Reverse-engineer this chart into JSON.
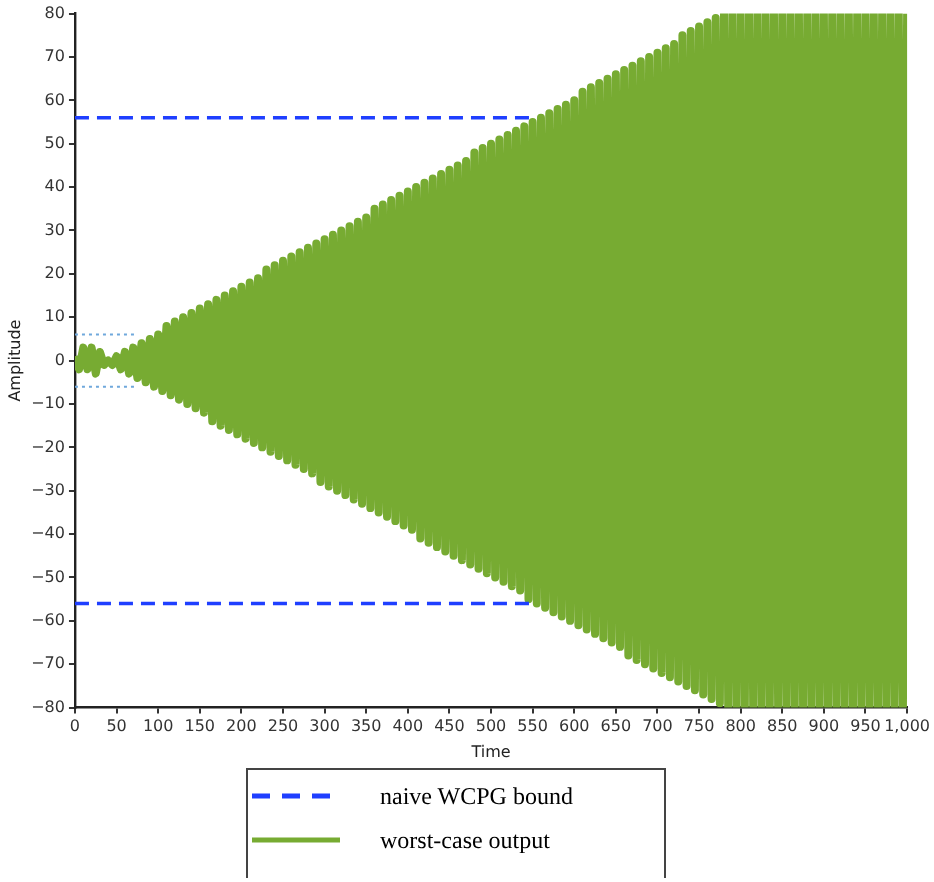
{
  "chart_data": {
    "type": "line",
    "xlabel": "Time",
    "ylabel": "Amplitude",
    "legend": "bottom",
    "marker": "none",
    "xlim": [
      0,
      1000
    ],
    "ylim": [
      -80,
      80
    ],
    "xticks": [
      0,
      50,
      100,
      150,
      200,
      250,
      300,
      350,
      400,
      450,
      500,
      550,
      600,
      650,
      700,
      750,
      800,
      850,
      900,
      950,
      {
        "value": 1000,
        "label": "1,000"
      }
    ],
    "yticks": [
      {
        "value": -80,
        "label": "−80"
      },
      {
        "value": -70,
        "label": "−70"
      },
      {
        "value": -60,
        "label": "−60"
      },
      {
        "value": -50,
        "label": "−50"
      },
      {
        "value": -40,
        "label": "−40"
      },
      {
        "value": -30,
        "label": "−30"
      },
      {
        "value": -20,
        "label": "−20"
      },
      {
        "value": -10,
        "label": "−10"
      },
      0,
      10,
      20,
      30,
      40,
      50,
      60,
      70,
      80
    ],
    "x": [
      0,
      5,
      10,
      15,
      20,
      25,
      30,
      35,
      40,
      45,
      50,
      55,
      60,
      65,
      70,
      75,
      80,
      85,
      90,
      95,
      100,
      105,
      110,
      115,
      120,
      125,
      130,
      135,
      140,
      145,
      150,
      155,
      160,
      165,
      170,
      175,
      180,
      185,
      190,
      195,
      200,
      205,
      210,
      215,
      220,
      225,
      230,
      235,
      240,
      245,
      250,
      255,
      260,
      265,
      270,
      275,
      280,
      285,
      290,
      295,
      300,
      305,
      310,
      315,
      320,
      325,
      330,
      335,
      340,
      345,
      350,
      355,
      360,
      365,
      370,
      375,
      380,
      385,
      390,
      395,
      400,
      405,
      410,
      415,
      420,
      425,
      430,
      435,
      440,
      445,
      450,
      455,
      460,
      465,
      470,
      475,
      480,
      485,
      490,
      495,
      500,
      505,
      510,
      515,
      520,
      525,
      530,
      535,
      540,
      545,
      550,
      555,
      560,
      565,
      570,
      575,
      580,
      585,
      590,
      595,
      600,
      605,
      610,
      615,
      620,
      625,
      630,
      635,
      640,
      645,
      650,
      655,
      660,
      665,
      670,
      675,
      680,
      685,
      690,
      695,
      700,
      705,
      710,
      715,
      720,
      725,
      730,
      735,
      740,
      745,
      750,
      755,
      760,
      765,
      770,
      775,
      780,
      785,
      790,
      795,
      800,
      805,
      810,
      815,
      820,
      825,
      830,
      835,
      840,
      845,
      850,
      855,
      860,
      865,
      870,
      875,
      880,
      885,
      890,
      895,
      900,
      905,
      910,
      915,
      920,
      925,
      930,
      935,
      940,
      945,
      950,
      955,
      960,
      965,
      970,
      975,
      980,
      985,
      990,
      995,
      1000
    ],
    "series": [
      {
        "name": "naive WCPG bound",
        "color": "#1f3fff",
        "line_style": "dashed",
        "x": [
          0,
          550
        ],
        "values": [
          56,
          56
        ]
      },
      {
        "color": "#1f3fff",
        "line_style": "dashed",
        "x": [
          0,
          550
        ],
        "values": [
          -56,
          -56
        ]
      },
      {
        "color": "#6fa8dc",
        "line_style": "dotted",
        "x": [
          0,
          75
        ],
        "values": [
          6,
          6
        ]
      },
      {
        "color": "#6fa8dc",
        "line_style": "dotted",
        "x": [
          0,
          75
        ],
        "values": [
          -6,
          -6
        ]
      },
      {
        "name": "worst-case output",
        "color": "#77ab32",
        "line_style": "solid",
        "values": [
          1,
          -2,
          3,
          -2,
          3,
          -3,
          2,
          -1,
          0,
          -1,
          1,
          -2,
          2,
          -3,
          3,
          -4,
          4,
          -5,
          5,
          -6,
          6,
          -7,
          8,
          -8,
          9,
          -9,
          10,
          -10,
          11,
          -11,
          12,
          -12,
          13,
          -14,
          14,
          -15,
          15,
          -16,
          16,
          -17,
          17,
          -18,
          18,
          -19,
          19,
          -20,
          21,
          -21,
          22,
          -22,
          23,
          -23,
          24,
          -24,
          25,
          -25,
          26,
          -26,
          27,
          -28,
          28,
          -29,
          29,
          -30,
          30,
          -31,
          31,
          -32,
          32,
          -33,
          33,
          -34,
          35,
          -35,
          36,
          -36,
          37,
          -37,
          38,
          -38,
          39,
          -39,
          40,
          -41,
          41,
          -42,
          42,
          -43,
          43,
          -44,
          44,
          -45,
          45,
          -46,
          46,
          -47,
          48,
          -48,
          49,
          -49,
          50,
          -50,
          51,
          -51,
          52,
          -52,
          53,
          -53,
          54,
          -55,
          55,
          -56,
          56,
          -57,
          57,
          -58,
          58,
          -59,
          59,
          -60,
          60,
          -61,
          62,
          -62,
          63,
          -63,
          64,
          -64,
          65,
          -65,
          66,
          -66,
          67,
          -68,
          68,
          -69,
          69,
          -70,
          70,
          -71,
          71,
          -72,
          72,
          -73,
          73,
          -74,
          75,
          -75,
          76,
          -76,
          77,
          -77,
          78,
          -78,
          79,
          -79,
          80,
          -80,
          80,
          -80,
          80,
          -80,
          80,
          -80,
          80,
          -80,
          80,
          -80,
          80,
          -80,
          80,
          -80,
          80,
          -80,
          80,
          -80,
          80,
          -80,
          80,
          -80,
          80,
          -80,
          80,
          -80,
          80,
          -80,
          80,
          -80,
          80,
          -80,
          80,
          -80,
          80,
          -80,
          80,
          -80,
          80,
          -80,
          80,
          -80,
          80
        ]
      }
    ]
  }
}
